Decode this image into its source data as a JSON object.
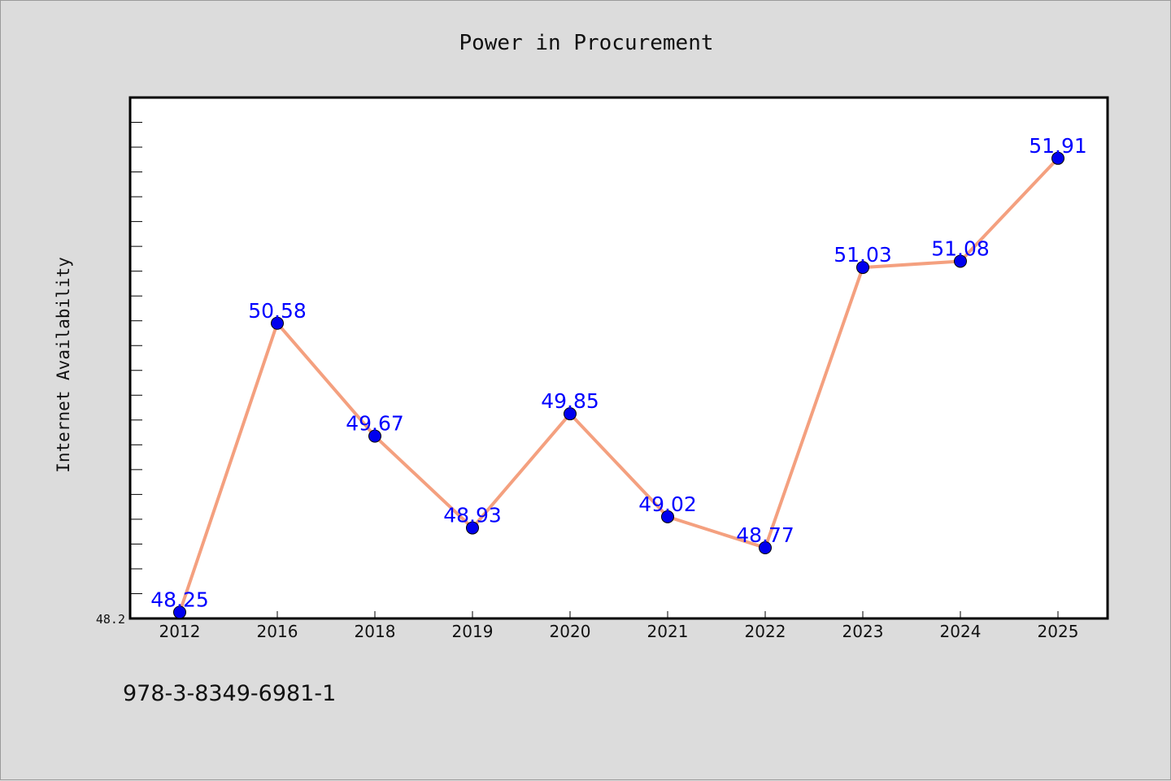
{
  "page": {
    "background": "#dddddd",
    "footer_text": "978-3-8349-6981-1"
  },
  "chart_data": {
    "type": "line",
    "title": "Power in Procurement",
    "xlabel": "",
    "ylabel": "Internet Availability",
    "categories": [
      "2012",
      "2016",
      "2018",
      "2019",
      "2020",
      "2021",
      "2022",
      "2023",
      "2024",
      "2025"
    ],
    "series": [
      {
        "values": [
          48.25,
          50.58,
          49.67,
          48.93,
          49.85,
          49.02,
          48.77,
          51.03,
          51.08,
          51.91
        ],
        "line_color": "#f4a07f",
        "marker_color": "#0000ee",
        "label_color": "#0000ff"
      }
    ],
    "y_tick_labels": [
      "48.2"
    ],
    "ylim": [
      48.2,
      52.4
    ],
    "grid": false,
    "legend": "none",
    "plot_background": "#ffffff"
  }
}
